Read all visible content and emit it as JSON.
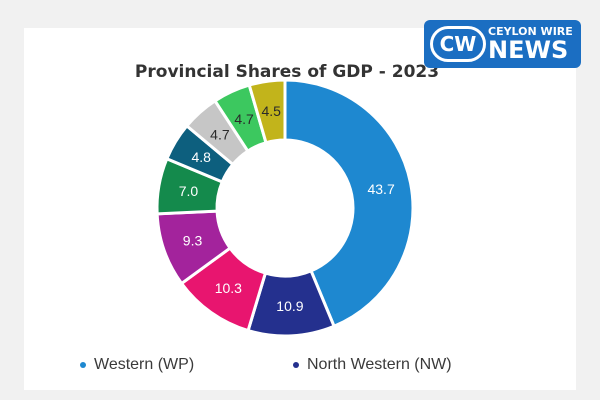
{
  "chart_data": {
    "type": "pie",
    "title": "Provincial Shares of GDP - 2023",
    "slices": [
      {
        "label": "43.7",
        "value": 43.7,
        "color": "#1e88d0"
      },
      {
        "label": "10.9",
        "value": 10.9,
        "color": "#24308e"
      },
      {
        "label": "10.3",
        "value": 10.3,
        "color": "#e8156f"
      },
      {
        "label": "9.3",
        "value": 9.3,
        "color": "#a3239c"
      },
      {
        "label": "7.0",
        "value": 7.0,
        "color": "#148a4c"
      },
      {
        "label": "4.8",
        "value": 4.8,
        "color": "#0d5f7e"
      },
      {
        "label": "4.7",
        "value": 4.7,
        "color": "#c6c6c6"
      },
      {
        "label": "4.7",
        "value": 4.7,
        "color": "#3cc85f"
      },
      {
        "label": "4.5",
        "value": 4.5,
        "color": "#c2b41b"
      }
    ],
    "legend": [
      {
        "name": "Western (WP)",
        "color": "#1e88d0"
      },
      {
        "name": "North Western (NW)",
        "color": "#24308e"
      }
    ],
    "legend_position": "bottom"
  },
  "logo": {
    "mark": "CW",
    "top_text": "CEYLON WIRE",
    "bottom_text": "NEWS"
  }
}
